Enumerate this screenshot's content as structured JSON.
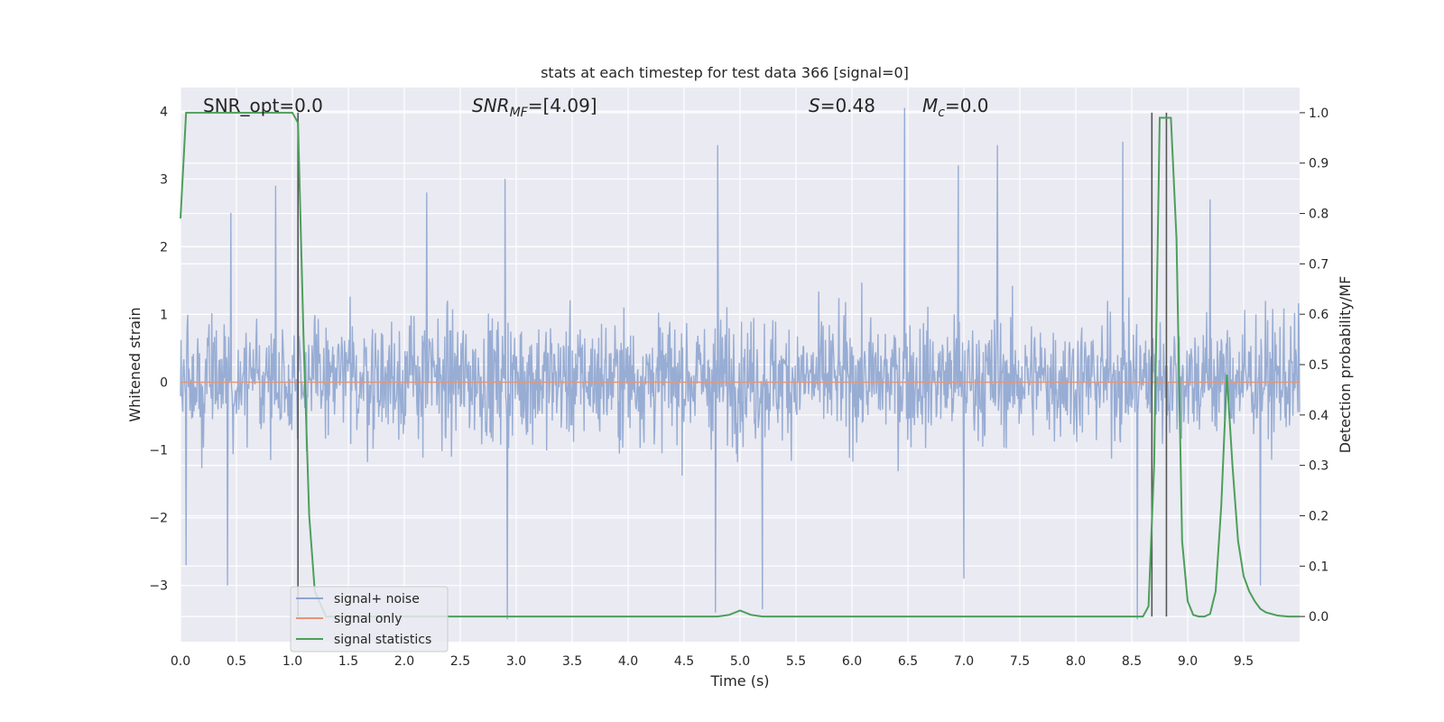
{
  "chart_data": {
    "type": "line",
    "title": "stats at each timestep for test data 366 [signal=0]",
    "xlabel": "Time (s)",
    "ylabel_left": "Whitened strain",
    "ylabel_right": "Detection probability/MF",
    "xlim": [
      0,
      10
    ],
    "ylim_left": [
      -3.83,
      4.35
    ],
    "ylim_right": [
      -0.05,
      1.05
    ],
    "x_ticks": [
      "0.0",
      "0.5",
      "1.0",
      "1.5",
      "2.0",
      "2.5",
      "3.0",
      "3.5",
      "4.0",
      "4.5",
      "5.0",
      "5.5",
      "6.0",
      "6.5",
      "7.0",
      "7.5",
      "8.0",
      "8.5",
      "9.0",
      "9.5"
    ],
    "y_ticks_left": [
      "4",
      "3",
      "2",
      "1",
      "0",
      "−1",
      "−2",
      "−3"
    ],
    "y_ticks_right": [
      "1.0",
      "0.9",
      "0.8",
      "0.7",
      "0.6",
      "0.5",
      "0.4",
      "0.3",
      "0.2",
      "0.1",
      "0.0"
    ],
    "grid": true,
    "legend_position": "lower-left",
    "annotations": {
      "snr_opt": "SNR_opt=0.0",
      "snr_mf_prefix": "SNR",
      "snr_mf_sub": "MF",
      "snr_mf_value": "=[4.09]",
      "s_symbol": "S",
      "s_value": "=0.48",
      "mc_symbol": "M",
      "mc_sub": "c",
      "mc_value": "=0.0"
    },
    "series": [
      {
        "name": "signal+ noise",
        "color": "#8fa6d0",
        "axis": "left",
        "description_values": {
          "typical_range": [
            -2.0,
            2.5
          ],
          "peaks": [
            {
              "x": 0.45,
              "y": 2.5
            },
            {
              "x": 0.85,
              "y": 2.9
            },
            {
              "x": 1.05,
              "y": 2.5
            },
            {
              "x": 2.2,
              "y": 2.8
            },
            {
              "x": 2.9,
              "y": 3.0
            },
            {
              "x": 4.8,
              "y": 3.5
            },
            {
              "x": 6.47,
              "y": 4.05
            },
            {
              "x": 6.95,
              "y": 3.2
            },
            {
              "x": 7.3,
              "y": 3.5
            },
            {
              "x": 8.42,
              "y": 3.55
            },
            {
              "x": 9.2,
              "y": 2.7
            }
          ],
          "troughs": [
            {
              "x": 0.05,
              "y": -2.7
            },
            {
              "x": 0.42,
              "y": -3.0
            },
            {
              "x": 2.92,
              "y": -3.5
            },
            {
              "x": 4.78,
              "y": -3.4
            },
            {
              "x": 5.2,
              "y": -3.35
            },
            {
              "x": 7.0,
              "y": -2.9
            },
            {
              "x": 8.55,
              "y": -3.5
            },
            {
              "x": 9.65,
              "y": -3.0
            }
          ]
        }
      },
      {
        "name": "signal only",
        "color": "#e1967a",
        "axis": "left",
        "x": [
          0,
          10
        ],
        "y": [
          0,
          0
        ]
      },
      {
        "name": "signal statistics",
        "color": "#4c9f5a",
        "axis": "right",
        "x": [
          0,
          0.05,
          0.1,
          0.15,
          0.2,
          0.3,
          0.5,
          0.7,
          0.9,
          1.0,
          1.05,
          1.1,
          1.15,
          1.2,
          1.3,
          1.4,
          1.6,
          2.0,
          3.0,
          4.0,
          4.8,
          4.9,
          5.0,
          5.1,
          5.2,
          6.0,
          7.0,
          8.0,
          8.5,
          8.6,
          8.65,
          8.7,
          8.75,
          8.8,
          8.85,
          8.9,
          8.95,
          9.0,
          9.05,
          9.1,
          9.15,
          9.2,
          9.25,
          9.3,
          9.35,
          9.4,
          9.45,
          9.5,
          9.55,
          9.6,
          9.65,
          9.7,
          9.8,
          9.9,
          10.0
        ],
        "y": [
          0.79,
          1.0,
          1.0,
          1.0,
          1.0,
          1.0,
          1.0,
          1.0,
          1.0,
          1.0,
          0.98,
          0.55,
          0.2,
          0.05,
          0.0,
          0.0,
          0.0,
          0.0,
          0.0,
          0.0,
          0.0,
          0.003,
          0.012,
          0.003,
          0.0,
          0.0,
          0.0,
          0.0,
          0.0,
          0.0,
          0.02,
          0.3,
          0.99,
          0.99,
          0.99,
          0.75,
          0.15,
          0.03,
          0.003,
          0.0,
          0.0,
          0.005,
          0.05,
          0.22,
          0.48,
          0.3,
          0.15,
          0.08,
          0.05,
          0.03,
          0.015,
          0.008,
          0.002,
          0.0,
          0.0
        ]
      }
    ],
    "vertical_markers": [
      {
        "x": 1.05,
        "color": "#555555"
      },
      {
        "x": 8.68,
        "color": "#555555"
      },
      {
        "x": 8.81,
        "color": "#555555"
      }
    ],
    "legend": [
      {
        "label": "signal+ noise",
        "color": "#8fa6d0"
      },
      {
        "label": "signal only",
        "color": "#e1967a"
      },
      {
        "label": "signal statistics",
        "color": "#4c9f5a"
      }
    ]
  }
}
